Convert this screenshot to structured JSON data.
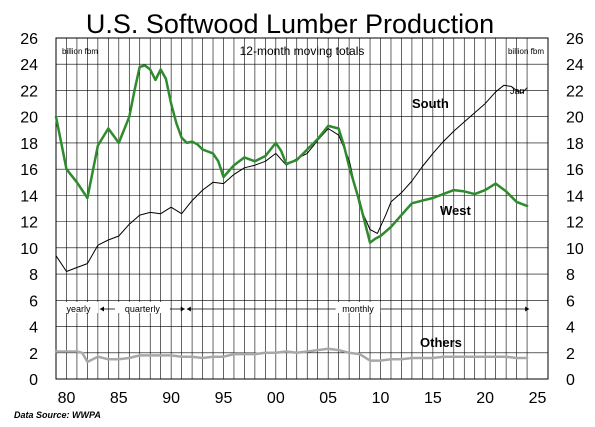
{
  "chart_data": {
    "type": "line",
    "title": "U.S. Softwood Lumber Production",
    "subtitle": "12-month moving totals",
    "ylabel_left": "billion fbm",
    "ylabel_right": "billion fbm",
    "ylim": [
      0,
      26
    ],
    "yticks": [
      0,
      2,
      4,
      6,
      8,
      10,
      12,
      14,
      16,
      18,
      20,
      22,
      24,
      26
    ],
    "xlim": [
      1979,
      2026
    ],
    "xticks": [
      80,
      85,
      90,
      95,
      "00",
      "05",
      10,
      15,
      20,
      25
    ],
    "xtick_years": [
      1980,
      1985,
      1990,
      1995,
      2000,
      2005,
      2010,
      2015,
      2020,
      2025
    ],
    "grid_vertical_years": [
      1980,
      1981,
      1982,
      1983,
      1984,
      1985,
      1986,
      1987,
      1988,
      1989,
      1990,
      1991,
      1992,
      1993,
      1994,
      1995,
      1996,
      1997,
      1998,
      1999,
      2000,
      2001,
      2002,
      2003,
      2004,
      2005,
      2006,
      2007,
      2008,
      2009,
      2010,
      2011,
      2012,
      2013,
      2014,
      2015,
      2016,
      2017,
      2018,
      2019,
      2020,
      2021,
      2022,
      2023,
      2024
    ],
    "period_labels": [
      {
        "text": "yearly",
        "from": 1979.5,
        "to": 1982.8
      },
      {
        "text": "quarterly",
        "from": 1983.2,
        "to": 1991.3
      },
      {
        "text": "monthly",
        "from": 1991.5,
        "to": 2024.2
      }
    ],
    "end_label": "Jan",
    "source": "Data Source:  WWPA",
    "series": [
      {
        "name": "South",
        "color": "#000000",
        "width": 1,
        "x": [
          1979.0,
          1980.0,
          1981.0,
          1982.0,
          1983.0,
          1984.0,
          1985.0,
          1986.0,
          1987.0,
          1988.0,
          1989.0,
          1990.0,
          1991.0,
          1992.0,
          1993.0,
          1994.0,
          1995.0,
          1996.0,
          1997.0,
          1998.0,
          1999.0,
          2000.0,
          2001.0,
          2002.0,
          2003.0,
          2004.0,
          2005.0,
          2006.0,
          2007.0,
          2008.0,
          2009.0,
          2009.7,
          2010.5,
          2011.0,
          2012.0,
          2013.0,
          2014.0,
          2015.0,
          2016.0,
          2017.0,
          2018.0,
          2019.0,
          2020.0,
          2021.0,
          2021.8,
          2022.5,
          2023.0,
          2023.5,
          2024.0
        ],
        "y": [
          9.4,
          8.2,
          8.5,
          8.8,
          10.2,
          10.6,
          10.9,
          11.8,
          12.5,
          12.7,
          12.6,
          13.1,
          12.6,
          13.6,
          14.4,
          15.0,
          14.9,
          15.6,
          16.1,
          16.3,
          16.6,
          17.2,
          16.3,
          16.8,
          17.2,
          18.2,
          19.1,
          18.6,
          16.7,
          13.2,
          11.4,
          11.1,
          12.5,
          13.5,
          14.2,
          15.1,
          16.2,
          17.2,
          18.1,
          18.9,
          19.6,
          20.3,
          21.0,
          21.9,
          22.4,
          22.3,
          22.0,
          21.8,
          22.2
        ]
      },
      {
        "name": "West",
        "color": "#2e8b2e",
        "width": 2.5,
        "x": [
          1979.0,
          1980.0,
          1981.0,
          1982.0,
          1983.0,
          1984.0,
          1985.0,
          1986.0,
          1986.5,
          1987.0,
          1987.5,
          1988.0,
          1988.5,
          1989.0,
          1989.5,
          1990.0,
          1990.5,
          1991.0,
          1991.5,
          1992.0,
          1992.5,
          1993.0,
          1994.0,
          1994.5,
          1995.0,
          1996.0,
          1997.0,
          1998.0,
          1999.0,
          2000.0,
          2000.5,
          2001.0,
          2002.0,
          2003.0,
          2004.0,
          2005.0,
          2006.0,
          2006.5,
          2007.0,
          2008.0,
          2009.0,
          2009.5,
          2010.0,
          2011.0,
          2012.0,
          2013.0,
          2014.0,
          2015.0,
          2016.0,
          2017.0,
          2018.0,
          2019.0,
          2020.0,
          2021.0,
          2022.0,
          2023.0,
          2024.0
        ],
        "y": [
          20.0,
          16.0,
          15.0,
          13.8,
          17.8,
          19.1,
          18.0,
          20.0,
          22.0,
          23.8,
          23.9,
          23.6,
          22.8,
          23.6,
          22.9,
          21.0,
          19.5,
          18.4,
          18.0,
          18.1,
          17.9,
          17.5,
          17.2,
          16.6,
          15.4,
          16.3,
          16.9,
          16.6,
          17.0,
          18.0,
          17.4,
          16.4,
          16.7,
          17.5,
          18.3,
          19.3,
          19.1,
          17.8,
          16.2,
          13.5,
          10.4,
          10.7,
          10.9,
          11.6,
          12.5,
          13.4,
          13.6,
          13.8,
          14.1,
          14.4,
          14.3,
          14.1,
          14.4,
          14.9,
          14.3,
          13.5,
          13.2
        ]
      },
      {
        "name": "Others",
        "color": "#a8a8a8",
        "width": 2.5,
        "x": [
          1979.0,
          1980.0,
          1981.0,
          1981.5,
          1982.0,
          1983.0,
          1984.0,
          1985.0,
          1986.0,
          1987.0,
          1988.0,
          1989.0,
          1990.0,
          1991.0,
          1992.0,
          1993.0,
          1994.0,
          1995.0,
          1996.0,
          1997.0,
          1998.0,
          1999.0,
          2000.0,
          2001.0,
          2002.0,
          2003.0,
          2004.0,
          2005.0,
          2006.0,
          2007.0,
          2008.0,
          2009.0,
          2010.0,
          2011.0,
          2012.0,
          2013.0,
          2014.0,
          2015.0,
          2016.0,
          2017.0,
          2018.0,
          2019.0,
          2020.0,
          2021.0,
          2022.0,
          2023.0,
          2024.0
        ],
        "y": [
          2.1,
          2.1,
          2.1,
          2.0,
          1.3,
          1.7,
          1.5,
          1.5,
          1.6,
          1.8,
          1.8,
          1.8,
          1.8,
          1.7,
          1.7,
          1.6,
          1.7,
          1.7,
          1.9,
          1.9,
          1.9,
          2.0,
          2.0,
          2.1,
          2.0,
          2.1,
          2.2,
          2.3,
          2.2,
          2.0,
          1.9,
          1.4,
          1.4,
          1.5,
          1.5,
          1.6,
          1.6,
          1.6,
          1.7,
          1.7,
          1.7,
          1.7,
          1.7,
          1.7,
          1.7,
          1.6,
          1.6
        ]
      }
    ]
  }
}
